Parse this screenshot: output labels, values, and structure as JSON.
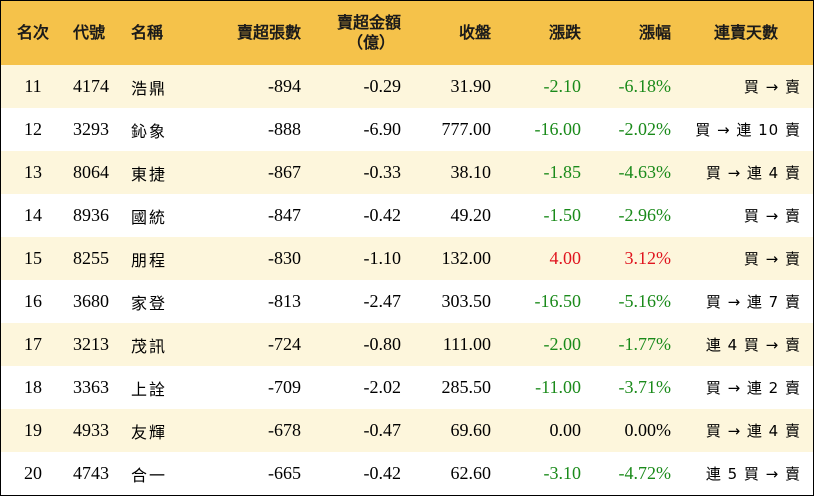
{
  "colors": {
    "header_bg": "#f5c24a",
    "odd_row_bg": "#fdf6dc",
    "even_row_bg": "#ffffff",
    "down_color": "#1a8a1a",
    "up_color": "#e0141e"
  },
  "headers": {
    "rank": "名次",
    "code": "代號",
    "name": "名稱",
    "sell_shares": "賣超張數",
    "sell_amount_line1": "賣超金額",
    "sell_amount_line2": "（億）",
    "close": "收盤",
    "change": "漲跌",
    "change_pct": "漲幅",
    "consec_days": "連賣天數"
  },
  "rows": [
    {
      "rank": "11",
      "code": "4174",
      "name": "浩鼎",
      "sell_shares": "-894",
      "sell_amount": "-0.29",
      "close": "31.90",
      "change": "-2.10",
      "change_pct": "-6.18%",
      "direction": "down",
      "consec_days": "買 → 賣"
    },
    {
      "rank": "12",
      "code": "3293",
      "name": "鈊象",
      "sell_shares": "-888",
      "sell_amount": "-6.90",
      "close": "777.00",
      "change": "-16.00",
      "change_pct": "-2.02%",
      "direction": "down",
      "consec_days": "買 → 連 10 賣"
    },
    {
      "rank": "13",
      "code": "8064",
      "name": "東捷",
      "sell_shares": "-867",
      "sell_amount": "-0.33",
      "close": "38.10",
      "change": "-1.85",
      "change_pct": "-4.63%",
      "direction": "down",
      "consec_days": "買 → 連 4 賣"
    },
    {
      "rank": "14",
      "code": "8936",
      "name": "國統",
      "sell_shares": "-847",
      "sell_amount": "-0.42",
      "close": "49.20",
      "change": "-1.50",
      "change_pct": "-2.96%",
      "direction": "down",
      "consec_days": "買 → 賣"
    },
    {
      "rank": "15",
      "code": "8255",
      "name": "朋程",
      "sell_shares": "-830",
      "sell_amount": "-1.10",
      "close": "132.00",
      "change": "4.00",
      "change_pct": "3.12%",
      "direction": "up",
      "consec_days": "買 → 賣"
    },
    {
      "rank": "16",
      "code": "3680",
      "name": "家登",
      "sell_shares": "-813",
      "sell_amount": "-2.47",
      "close": "303.50",
      "change": "-16.50",
      "change_pct": "-5.16%",
      "direction": "down",
      "consec_days": "買 → 連 7 賣"
    },
    {
      "rank": "17",
      "code": "3213",
      "name": "茂訊",
      "sell_shares": "-724",
      "sell_amount": "-0.80",
      "close": "111.00",
      "change": "-2.00",
      "change_pct": "-1.77%",
      "direction": "down",
      "consec_days": "連 4 買 → 賣"
    },
    {
      "rank": "18",
      "code": "3363",
      "name": "上詮",
      "sell_shares": "-709",
      "sell_amount": "-2.02",
      "close": "285.50",
      "change": "-11.00",
      "change_pct": "-3.71%",
      "direction": "down",
      "consec_days": "買 → 連 2 賣"
    },
    {
      "rank": "19",
      "code": "4933",
      "name": "友輝",
      "sell_shares": "-678",
      "sell_amount": "-0.47",
      "close": "69.60",
      "change": "0.00",
      "change_pct": "0.00%",
      "direction": "flat",
      "consec_days": "買 → 連 4 賣"
    },
    {
      "rank": "20",
      "code": "4743",
      "name": "合一",
      "sell_shares": "-665",
      "sell_amount": "-0.42",
      "close": "62.60",
      "change": "-3.10",
      "change_pct": "-4.72%",
      "direction": "down",
      "consec_days": "連 5 買 → 賣"
    }
  ]
}
